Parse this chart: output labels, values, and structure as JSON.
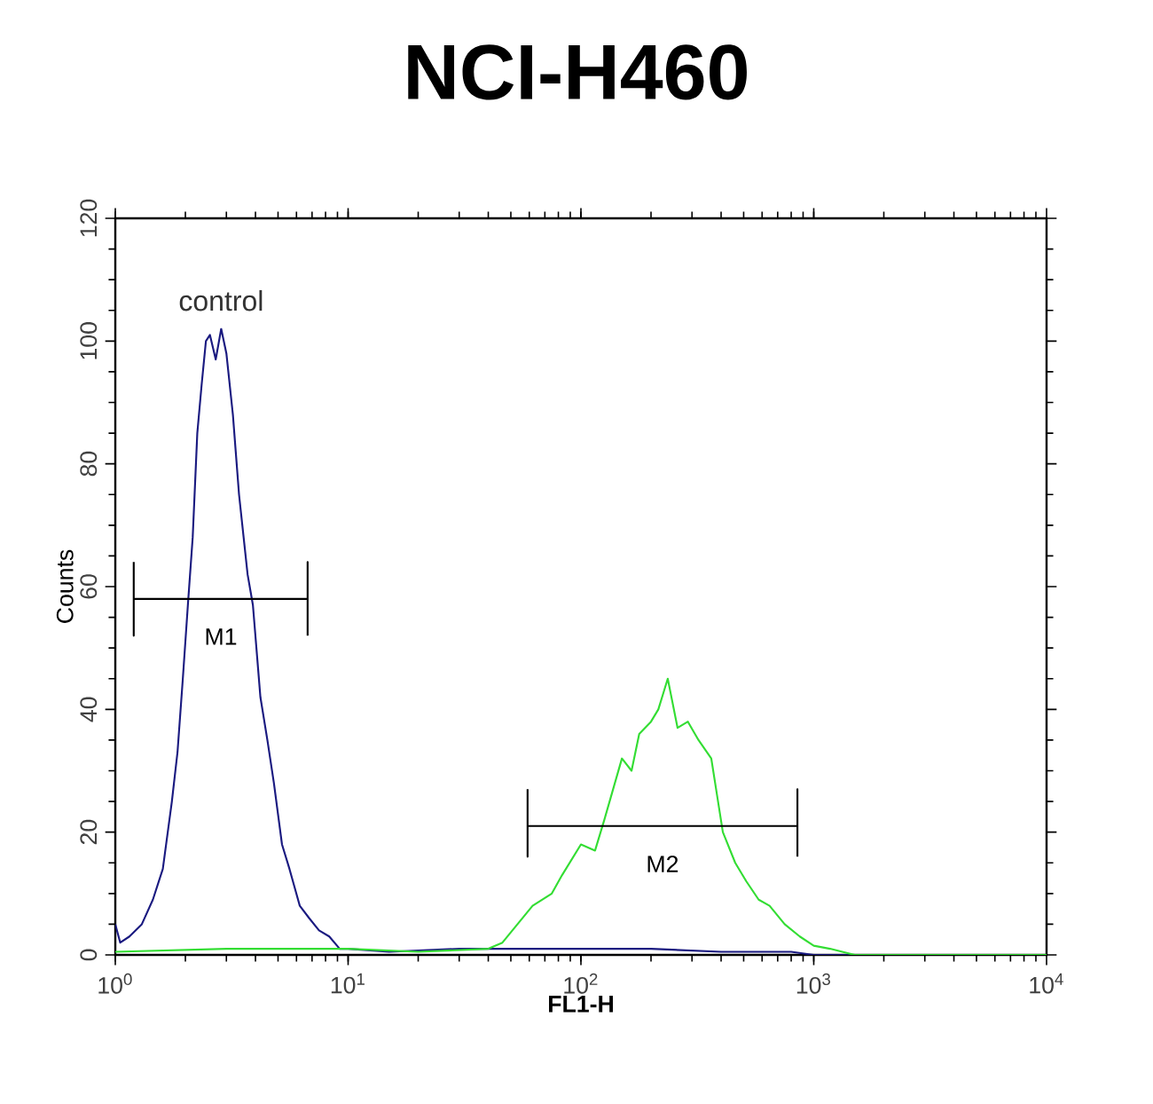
{
  "chart_data": {
    "type": "line",
    "title": "NCI-H460",
    "xlabel": "FL1-H",
    "ylabel": "Counts",
    "log": "x",
    "xlim": [
      1,
      10000
    ],
    "ylim": [
      0,
      120
    ],
    "xticks": [
      {
        "value": 1,
        "label": "10$^{0}$"
      },
      {
        "value": 10,
        "label": "10$^{1}$"
      },
      {
        "value": 100,
        "label": "10$^{2}$"
      },
      {
        "value": 1000,
        "label": "10$^{3}$"
      },
      {
        "value": 10000,
        "label": "10$^{4}$"
      }
    ],
    "yticks": [
      0,
      20,
      40,
      60,
      80,
      100,
      120
    ],
    "series": [
      {
        "name": "control",
        "color": "#1a1a80",
        "x": [
          1.0,
          1.05,
          1.15,
          1.3,
          1.45,
          1.6,
          1.75,
          1.85,
          1.95,
          2.05,
          2.15,
          2.25,
          2.35,
          2.45,
          2.55,
          2.7,
          2.85,
          3.0,
          3.2,
          3.4,
          3.7,
          3.9,
          4.2,
          4.5,
          4.8,
          5.2,
          5.6,
          6.2,
          6.8,
          7.5,
          8.3,
          9.2,
          10,
          15,
          30,
          60,
          100,
          200,
          400,
          800,
          1000,
          10000
        ],
        "values": [
          5,
          2,
          3,
          5,
          9,
          14,
          25,
          33,
          45,
          57,
          68,
          85,
          93,
          100,
          101,
          97,
          102,
          98,
          88,
          75,
          62,
          57,
          42,
          35,
          28,
          18,
          14,
          8,
          6,
          4,
          3,
          1,
          1,
          0.5,
          1,
          1,
          1,
          1,
          0.5,
          0.5,
          0,
          0
        ]
      },
      {
        "color": "#33dd33",
        "x": [
          1,
          3,
          10,
          20,
          40,
          46,
          62,
          75,
          83,
          100,
          115,
          126,
          150,
          165,
          178,
          200,
          215,
          236,
          260,
          288,
          320,
          363,
          407,
          460,
          513,
          580,
          646,
          750,
          871,
          1000,
          1175,
          1500,
          10000
        ],
        "values": [
          0.5,
          1,
          1,
          0.5,
          1,
          2,
          8,
          10,
          13,
          18,
          17,
          22,
          32,
          30,
          36,
          38,
          40,
          45,
          37,
          38,
          35,
          32,
          20,
          15,
          12,
          9,
          8,
          5,
          3,
          1.5,
          1,
          0,
          0
        ]
      },
      {
        "color": "#000000",
        "x": [
          1.2,
          1.2,
          1.2,
          6.7,
          6.7,
          6.7
        ],
        "values": [
          64,
          52,
          58,
          58,
          64,
          52
        ]
      },
      {
        "color": "#000000",
        "x": [
          59,
          59,
          59,
          851,
          851,
          851
        ],
        "values": [
          27,
          16,
          21,
          21,
          27,
          16
        ]
      }
    ],
    "annotations": [
      {
        "text": "M1",
        "x": 2.84,
        "y": 58
      },
      {
        "text": "M2",
        "x": 224,
        "y": 21
      }
    ]
  }
}
